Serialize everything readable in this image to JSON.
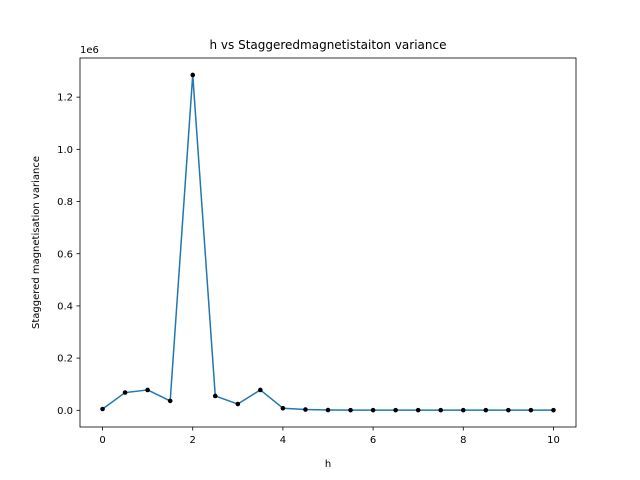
{
  "chart_data": {
    "type": "line",
    "title": "h vs Staggeredmagnetistaiton variance",
    "xlabel": "h",
    "ylabel": "Staggered magnetisation variance",
    "offset_label": "1e6",
    "xlim": [
      -0.5,
      10.5
    ],
    "ylim": [
      -0.064,
      1.35
    ],
    "xticks": [
      0,
      2,
      4,
      6,
      8,
      10
    ],
    "xtick_labels": [
      "0",
      "2",
      "4",
      "6",
      "8",
      "10"
    ],
    "yticks": [
      0.0,
      0.2,
      0.4,
      0.6,
      0.8,
      1.0,
      1.2
    ],
    "ytick_labels": [
      "0.0",
      "0.2",
      "0.4",
      "0.6",
      "0.8",
      "1.0",
      "1.2"
    ],
    "grid": false,
    "series": [
      {
        "line_color": "#1f77b4",
        "marker_color": "#000000",
        "x": [
          0,
          0.5,
          1,
          1.5,
          2,
          2.5,
          3,
          3.5,
          4,
          4.5,
          5,
          5.5,
          6,
          6.5,
          7,
          7.5,
          8,
          8.5,
          9,
          9.5,
          10
        ],
        "y": [
          0.005,
          0.068,
          0.078,
          0.036,
          1.285,
          0.055,
          0.024,
          0.078,
          0.008,
          0.003,
          0.001,
          0.0005,
          0.0005,
          0.0005,
          0.0005,
          0.0005,
          0.0005,
          0.0005,
          0.0005,
          0.0005,
          0.0005
        ]
      }
    ]
  }
}
